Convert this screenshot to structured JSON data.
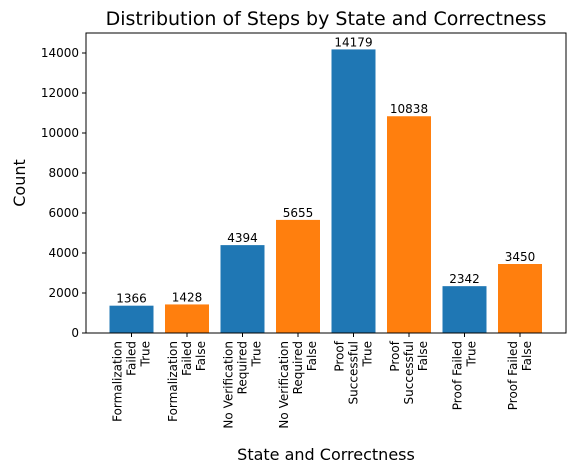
{
  "chart_data": {
    "type": "bar",
    "title": "Distribution of Steps by State and Correctness",
    "xlabel": "State and Correctness",
    "ylabel": "Count",
    "ylim": [
      0,
      15000
    ],
    "yticks": [
      0,
      2000,
      4000,
      6000,
      8000,
      10000,
      12000,
      14000
    ],
    "grid": false,
    "legend": null,
    "categories": [
      [
        "Formalization",
        "Failed",
        "True"
      ],
      [
        "Formalization",
        "Failed",
        "False"
      ],
      [
        "No Verification",
        "Required",
        "True"
      ],
      [
        "No Verification",
        "Required",
        "False"
      ],
      [
        "Proof",
        "Successful",
        "True"
      ],
      [
        "Proof",
        "Successful",
        "False"
      ],
      [
        "Proof Failed",
        "True"
      ],
      [
        "Proof Failed",
        "False"
      ]
    ],
    "values": [
      1366,
      1428,
      4394,
      5655,
      14179,
      10838,
      2342,
      3450
    ],
    "bar_colors": [
      "#1f77b4",
      "#ff7f0e",
      "#1f77b4",
      "#ff7f0e",
      "#1f77b4",
      "#ff7f0e",
      "#1f77b4",
      "#ff7f0e"
    ]
  }
}
